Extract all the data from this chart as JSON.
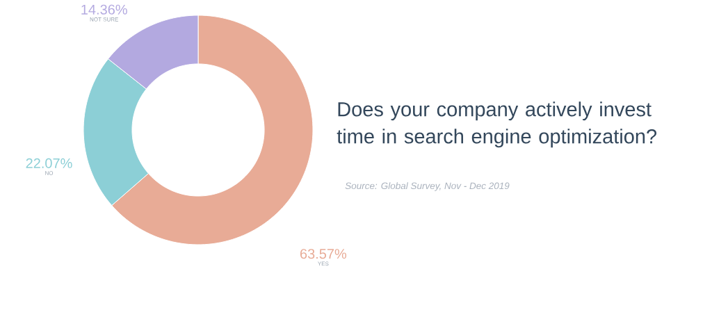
{
  "chart_data": {
    "type": "donut",
    "title": "Does your company actively invest time in search engine optimization?",
    "categories": [
      "YES",
      "NO",
      "NOT SURE"
    ],
    "values": [
      63.57,
      22.07,
      14.36
    ],
    "value_labels": [
      "63.57%",
      "22.07%",
      "14.36%"
    ],
    "colors": [
      "#e8ab96",
      "#8ccfd6",
      "#b3a9e0"
    ],
    "annotations": [
      "Source: Global Survey, Nov - Dec 2019"
    ]
  }
}
